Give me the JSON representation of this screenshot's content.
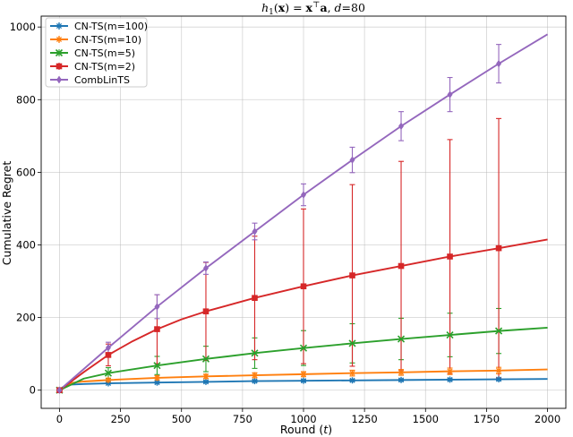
{
  "chart_data": {
    "type": "line",
    "title_parts": {
      "h": "h",
      "sub": "1",
      "arg_open": "(",
      "x": "x",
      "arg_close": ") = ",
      "x2": "x",
      "sup": "⊤",
      "a": "a",
      "sep": ", ",
      "d": "d",
      "eq": "=80"
    },
    "xlabel_parts": {
      "pre": "Round (",
      "var": "t",
      "post": ")"
    },
    "ylabel": "Cumulative Regret",
    "xlim": [
      -75,
      2075
    ],
    "ylim": [
      -50,
      1030
    ],
    "xticks": [
      0,
      250,
      500,
      750,
      1000,
      1250,
      1500,
      1750,
      2000
    ],
    "yticks": [
      0,
      200,
      400,
      600,
      800,
      1000
    ],
    "grid": true,
    "legend_position": "top-left",
    "series": [
      {
        "name": "CN-TS(m=100)",
        "color": "#1f77b4",
        "marker": "star",
        "line": [
          [
            0,
            0
          ],
          [
            30,
            15
          ],
          [
            100,
            17
          ],
          [
            200,
            19
          ],
          [
            400,
            21
          ],
          [
            600,
            23
          ],
          [
            800,
            25
          ],
          [
            1000,
            26
          ],
          [
            1200,
            27
          ],
          [
            1400,
            28
          ],
          [
            1600,
            29
          ],
          [
            1800,
            30
          ],
          [
            2000,
            31
          ]
        ],
        "points": [
          [
            200,
            19
          ],
          [
            400,
            21
          ],
          [
            600,
            23
          ],
          [
            800,
            25
          ],
          [
            1000,
            26
          ],
          [
            1200,
            27
          ],
          [
            1400,
            28
          ],
          [
            1600,
            29
          ],
          [
            1800,
            30
          ]
        ],
        "err": [
          2,
          2,
          3,
          3,
          3,
          3,
          3,
          3,
          3
        ]
      },
      {
        "name": "CN-TS(m=10)",
        "color": "#ff7f0e",
        "marker": "star",
        "line": [
          [
            0,
            0
          ],
          [
            50,
            20
          ],
          [
            100,
            24
          ],
          [
            200,
            28
          ],
          [
            400,
            34
          ],
          [
            600,
            38
          ],
          [
            800,
            41
          ],
          [
            1000,
            44
          ],
          [
            1200,
            47
          ],
          [
            1400,
            49
          ],
          [
            1600,
            52
          ],
          [
            1800,
            54
          ],
          [
            2000,
            57
          ]
        ],
        "points": [
          [
            200,
            28
          ],
          [
            400,
            34
          ],
          [
            600,
            38
          ],
          [
            800,
            41
          ],
          [
            1000,
            44
          ],
          [
            1200,
            47
          ],
          [
            1400,
            49
          ],
          [
            1600,
            52
          ],
          [
            1800,
            54
          ]
        ],
        "err": [
          5,
          6,
          6,
          7,
          7,
          8,
          8,
          9,
          9
        ]
      },
      {
        "name": "CN-TS(m=5)",
        "color": "#2ca02c",
        "marker": "x",
        "line": [
          [
            0,
            0
          ],
          [
            100,
            32
          ],
          [
            200,
            47
          ],
          [
            400,
            68
          ],
          [
            600,
            86
          ],
          [
            800,
            102
          ],
          [
            1000,
            116
          ],
          [
            1200,
            129
          ],
          [
            1400,
            141
          ],
          [
            1600,
            152
          ],
          [
            1800,
            163
          ],
          [
            2000,
            172
          ]
        ],
        "points": [
          [
            200,
            47
          ],
          [
            400,
            68
          ],
          [
            600,
            86
          ],
          [
            800,
            102
          ],
          [
            1000,
            116
          ],
          [
            1200,
            129
          ],
          [
            1400,
            141
          ],
          [
            1600,
            152
          ],
          [
            1800,
            163
          ]
        ],
        "err": [
          15,
          25,
          35,
          42,
          48,
          54,
          57,
          60,
          62
        ]
      },
      {
        "name": "CN-TS(m=2)",
        "color": "#d62728",
        "marker": "square",
        "line": [
          [
            0,
            0
          ],
          [
            100,
            50
          ],
          [
            200,
            97
          ],
          [
            300,
            135
          ],
          [
            400,
            168
          ],
          [
            500,
            195
          ],
          [
            600,
            217
          ],
          [
            800,
            254
          ],
          [
            1000,
            286
          ],
          [
            1200,
            316
          ],
          [
            1400,
            342
          ],
          [
            1600,
            368
          ],
          [
            1800,
            391
          ],
          [
            2000,
            415
          ]
        ],
        "points": [
          [
            200,
            97
          ],
          [
            400,
            168
          ],
          [
            600,
            217
          ],
          [
            800,
            254
          ],
          [
            1000,
            286
          ],
          [
            1200,
            316
          ],
          [
            1400,
            342
          ],
          [
            1600,
            368
          ],
          [
            1800,
            391
          ]
        ],
        "err": [
          30,
          95,
          135,
          170,
          213,
          250,
          288,
          322,
          357
        ]
      },
      {
        "name": "CombLinTS",
        "color": "#9467bd",
        "marker": "diamond",
        "line": [
          [
            0,
            0
          ],
          [
            200,
            117
          ],
          [
            400,
            230
          ],
          [
            600,
            336
          ],
          [
            800,
            437
          ],
          [
            1000,
            538
          ],
          [
            1200,
            634
          ],
          [
            1400,
            727
          ],
          [
            1600,
            814
          ],
          [
            1800,
            899
          ],
          [
            2000,
            980
          ]
        ],
        "points": [
          [
            200,
            117
          ],
          [
            400,
            230
          ],
          [
            600,
            336
          ],
          [
            800,
            437
          ],
          [
            1000,
            538
          ],
          [
            1200,
            634
          ],
          [
            1400,
            727
          ],
          [
            1600,
            814
          ],
          [
            1800,
            899
          ]
        ],
        "err": [
          15,
          33,
          17,
          23,
          30,
          35,
          40,
          47,
          53
        ]
      }
    ]
  }
}
